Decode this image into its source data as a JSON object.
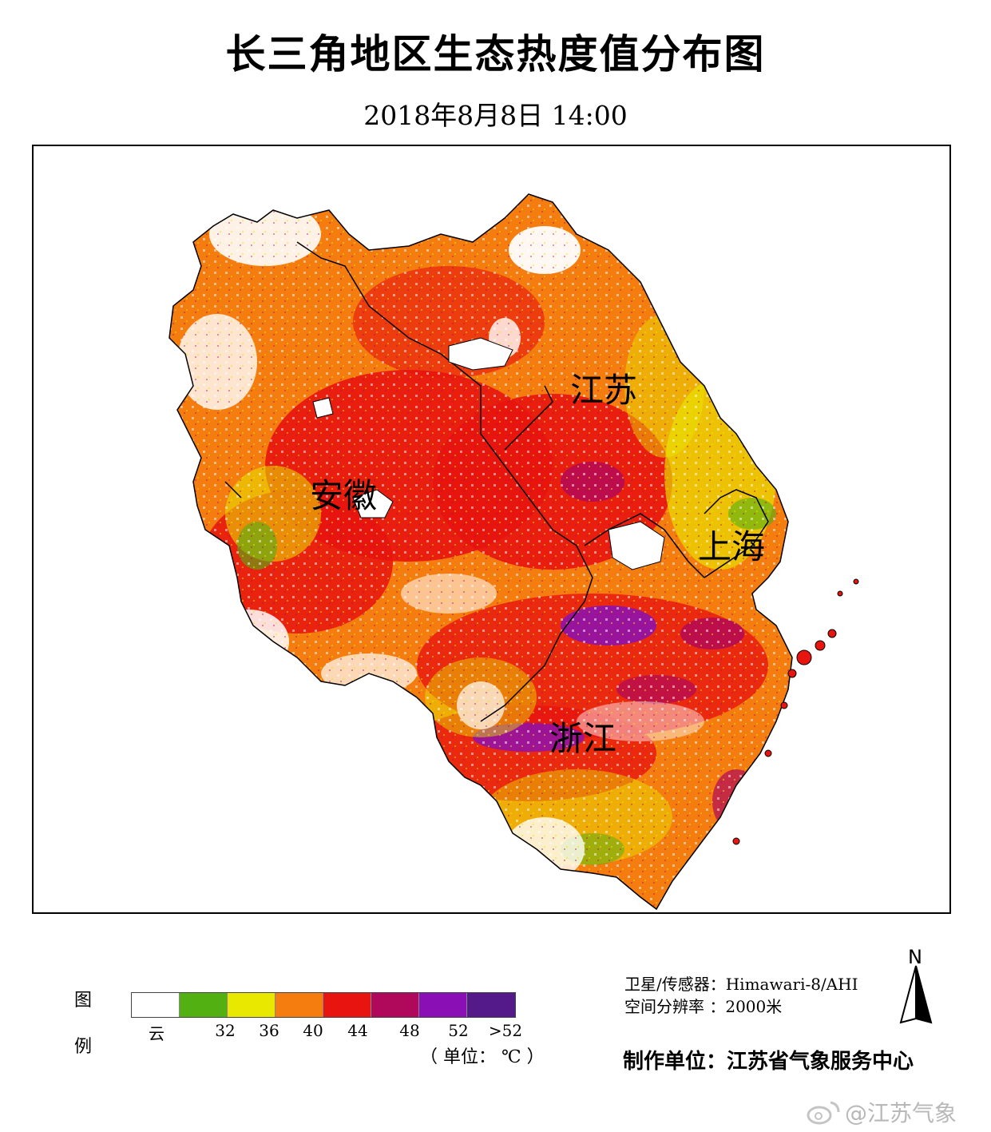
{
  "header": {
    "title": "长三角地区生态热度值分布图",
    "subtitle": "2018年8月8日  14:00"
  },
  "map": {
    "regions": [
      {
        "name": "江苏"
      },
      {
        "name": "安徽"
      },
      {
        "name": "上海"
      },
      {
        "name": "浙江"
      }
    ]
  },
  "legend": {
    "title_top": "图",
    "title_bottom": "例",
    "swatches": [
      {
        "label": "云",
        "color": "#ffffff"
      },
      {
        "label": "",
        "color": "#52b012"
      },
      {
        "label": "32",
        "color": "#e8e800"
      },
      {
        "label": "36",
        "color": "#f57c0f"
      },
      {
        "label": "40",
        "color": "#e8140f"
      },
      {
        "label": "44",
        "color": "#b0085a"
      },
      {
        "label": "48",
        "color": "#8a10b5"
      },
      {
        "label": "52",
        "color": "#541a8a"
      }
    ],
    "tick_labels": [
      "云",
      "32",
      "36",
      "40",
      "44",
      "48",
      "52",
      ">52"
    ],
    "unit": "（ 单位： ℃ ）"
  },
  "info": {
    "satellite": "卫星/传感器：Himawari-8/AHI",
    "resolution": "空间分辨率 ：2000米",
    "producer": "制作单位：江苏省气象服务中心"
  },
  "north_arrow": {
    "label": "N",
    "icon": "north-arrow-icon"
  },
  "watermark": {
    "text": "@江苏气象",
    "icon": "weibo-icon"
  }
}
